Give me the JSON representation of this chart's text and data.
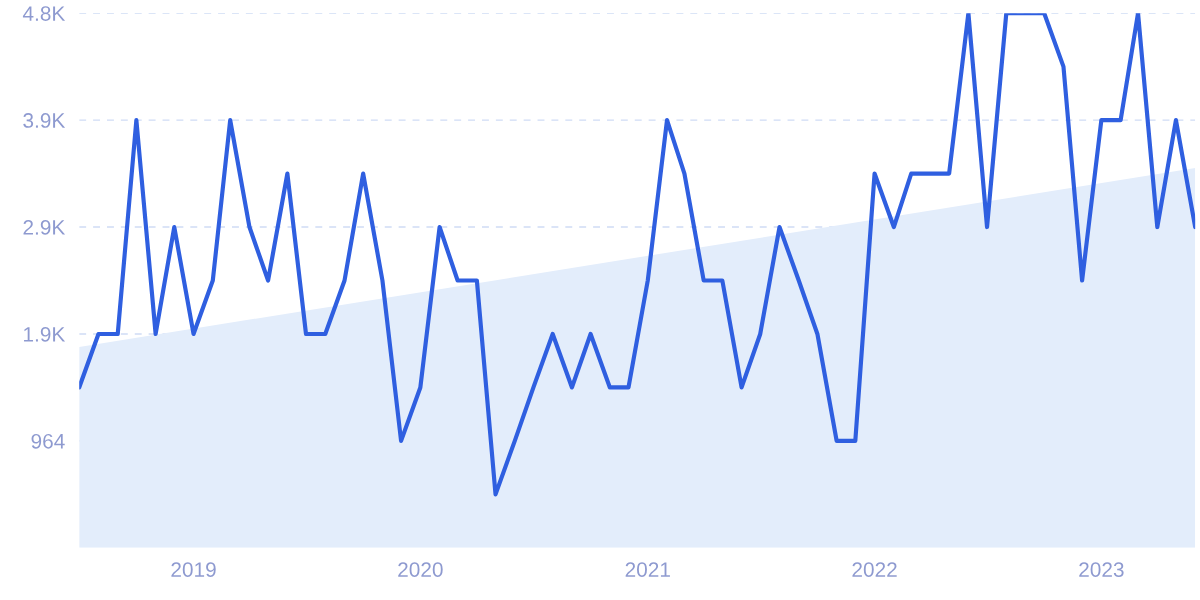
{
  "chart_data": {
    "type": "line",
    "x": [
      "2018-07",
      "2018-08",
      "2018-09",
      "2018-10",
      "2018-11",
      "2018-12",
      "2019-01",
      "2019-02",
      "2019-03",
      "2019-04",
      "2019-05",
      "2019-06",
      "2019-07",
      "2019-08",
      "2019-09",
      "2019-10",
      "2019-11",
      "2019-12",
      "2020-01",
      "2020-02",
      "2020-03",
      "2020-04",
      "2020-05",
      "2020-06",
      "2020-07",
      "2020-08",
      "2020-09",
      "2020-10",
      "2020-11",
      "2020-12",
      "2021-01",
      "2021-02",
      "2021-03",
      "2021-04",
      "2021-05",
      "2021-06",
      "2021-07",
      "2021-08",
      "2021-09",
      "2021-10",
      "2021-11",
      "2021-12",
      "2022-01",
      "2022-02",
      "2022-03",
      "2022-04",
      "2022-05",
      "2022-06",
      "2022-07",
      "2022-08",
      "2022-09",
      "2022-10",
      "2022-11",
      "2022-12",
      "2023-01",
      "2023-02",
      "2023-03",
      "2023-04",
      "2023-05",
      "2023-06"
    ],
    "series": [
      {
        "type": "area",
        "color": "#e3edfb",
        "x": [
          "2018-07",
          "2023-06"
        ],
        "values": [
          1811,
          3424
        ]
      },
      {
        "color": "#2f5fe0",
        "values": [
          1446,
          1928,
          1928,
          3856,
          1928,
          2892,
          1928,
          2410,
          3856,
          2892,
          2410,
          3374,
          1928,
          1928,
          2410,
          3374,
          2410,
          964,
          1446,
          2892,
          2410,
          2410,
          482,
          964,
          1446,
          1928,
          1446,
          1928,
          1446,
          1446,
          2410,
          3856,
          3374,
          2410,
          2410,
          1446,
          1928,
          2892,
          2410,
          1928,
          964,
          964,
          3374,
          2892,
          3374,
          3374,
          3374,
          4820,
          2892,
          4820,
          4820,
          4820,
          4338,
          2410,
          3856,
          3856,
          4820,
          2892,
          3856,
          2892
        ]
      }
    ],
    "xlim": [
      "2018-07",
      "2023-06"
    ],
    "xticks": [
      {
        "value": "2019",
        "label": "2019"
      },
      {
        "value": "2020",
        "label": "2020"
      },
      {
        "value": "2021",
        "label": "2021"
      },
      {
        "value": "2022",
        "label": "2022"
      },
      {
        "value": "2023",
        "label": "2023"
      }
    ],
    "ylim": [
      0,
      4820
    ],
    "yticks": [
      {
        "value": 964,
        "label": "964"
      },
      {
        "value": 1928,
        "label": "1.9K"
      },
      {
        "value": 2892,
        "label": "2.9K"
      },
      {
        "value": 3856,
        "label": "3.9K"
      },
      {
        "value": 4820,
        "label": "4.8K"
      }
    ],
    "grid": "y",
    "legend": false,
    "marker": "none",
    "line_style": "solid"
  }
}
